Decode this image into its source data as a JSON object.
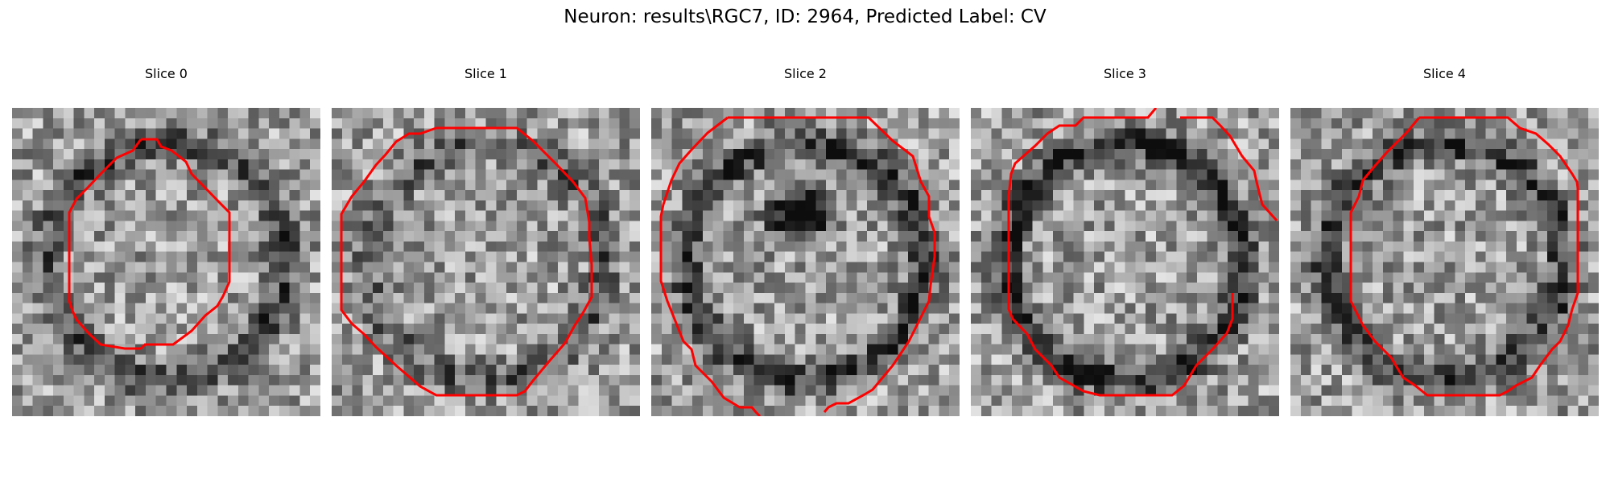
{
  "figure": {
    "suptitle": "Neuron: results\\RGC7, ID: 2964, Predicted Label: CV",
    "contour_color": "#ff0000",
    "colormap": "grayscale",
    "panels": [
      {
        "title": "Slice 0",
        "seed": 11,
        "dark_ring": 0.35,
        "dark_blob": 0.0
      },
      {
        "title": "Slice 1",
        "seed": 23,
        "dark_ring": 0.25,
        "dark_blob": 0.0
      },
      {
        "title": "Slice 2",
        "seed": 37,
        "dark_ring": 0.4,
        "dark_blob": 0.9
      },
      {
        "title": "Slice 3",
        "seed": 41,
        "dark_ring": 0.45,
        "dark_blob": 0.0
      },
      {
        "title": "Slice 4",
        "seed": 53,
        "dark_ring": 0.4,
        "dark_blob": 0.0
      }
    ]
  }
}
